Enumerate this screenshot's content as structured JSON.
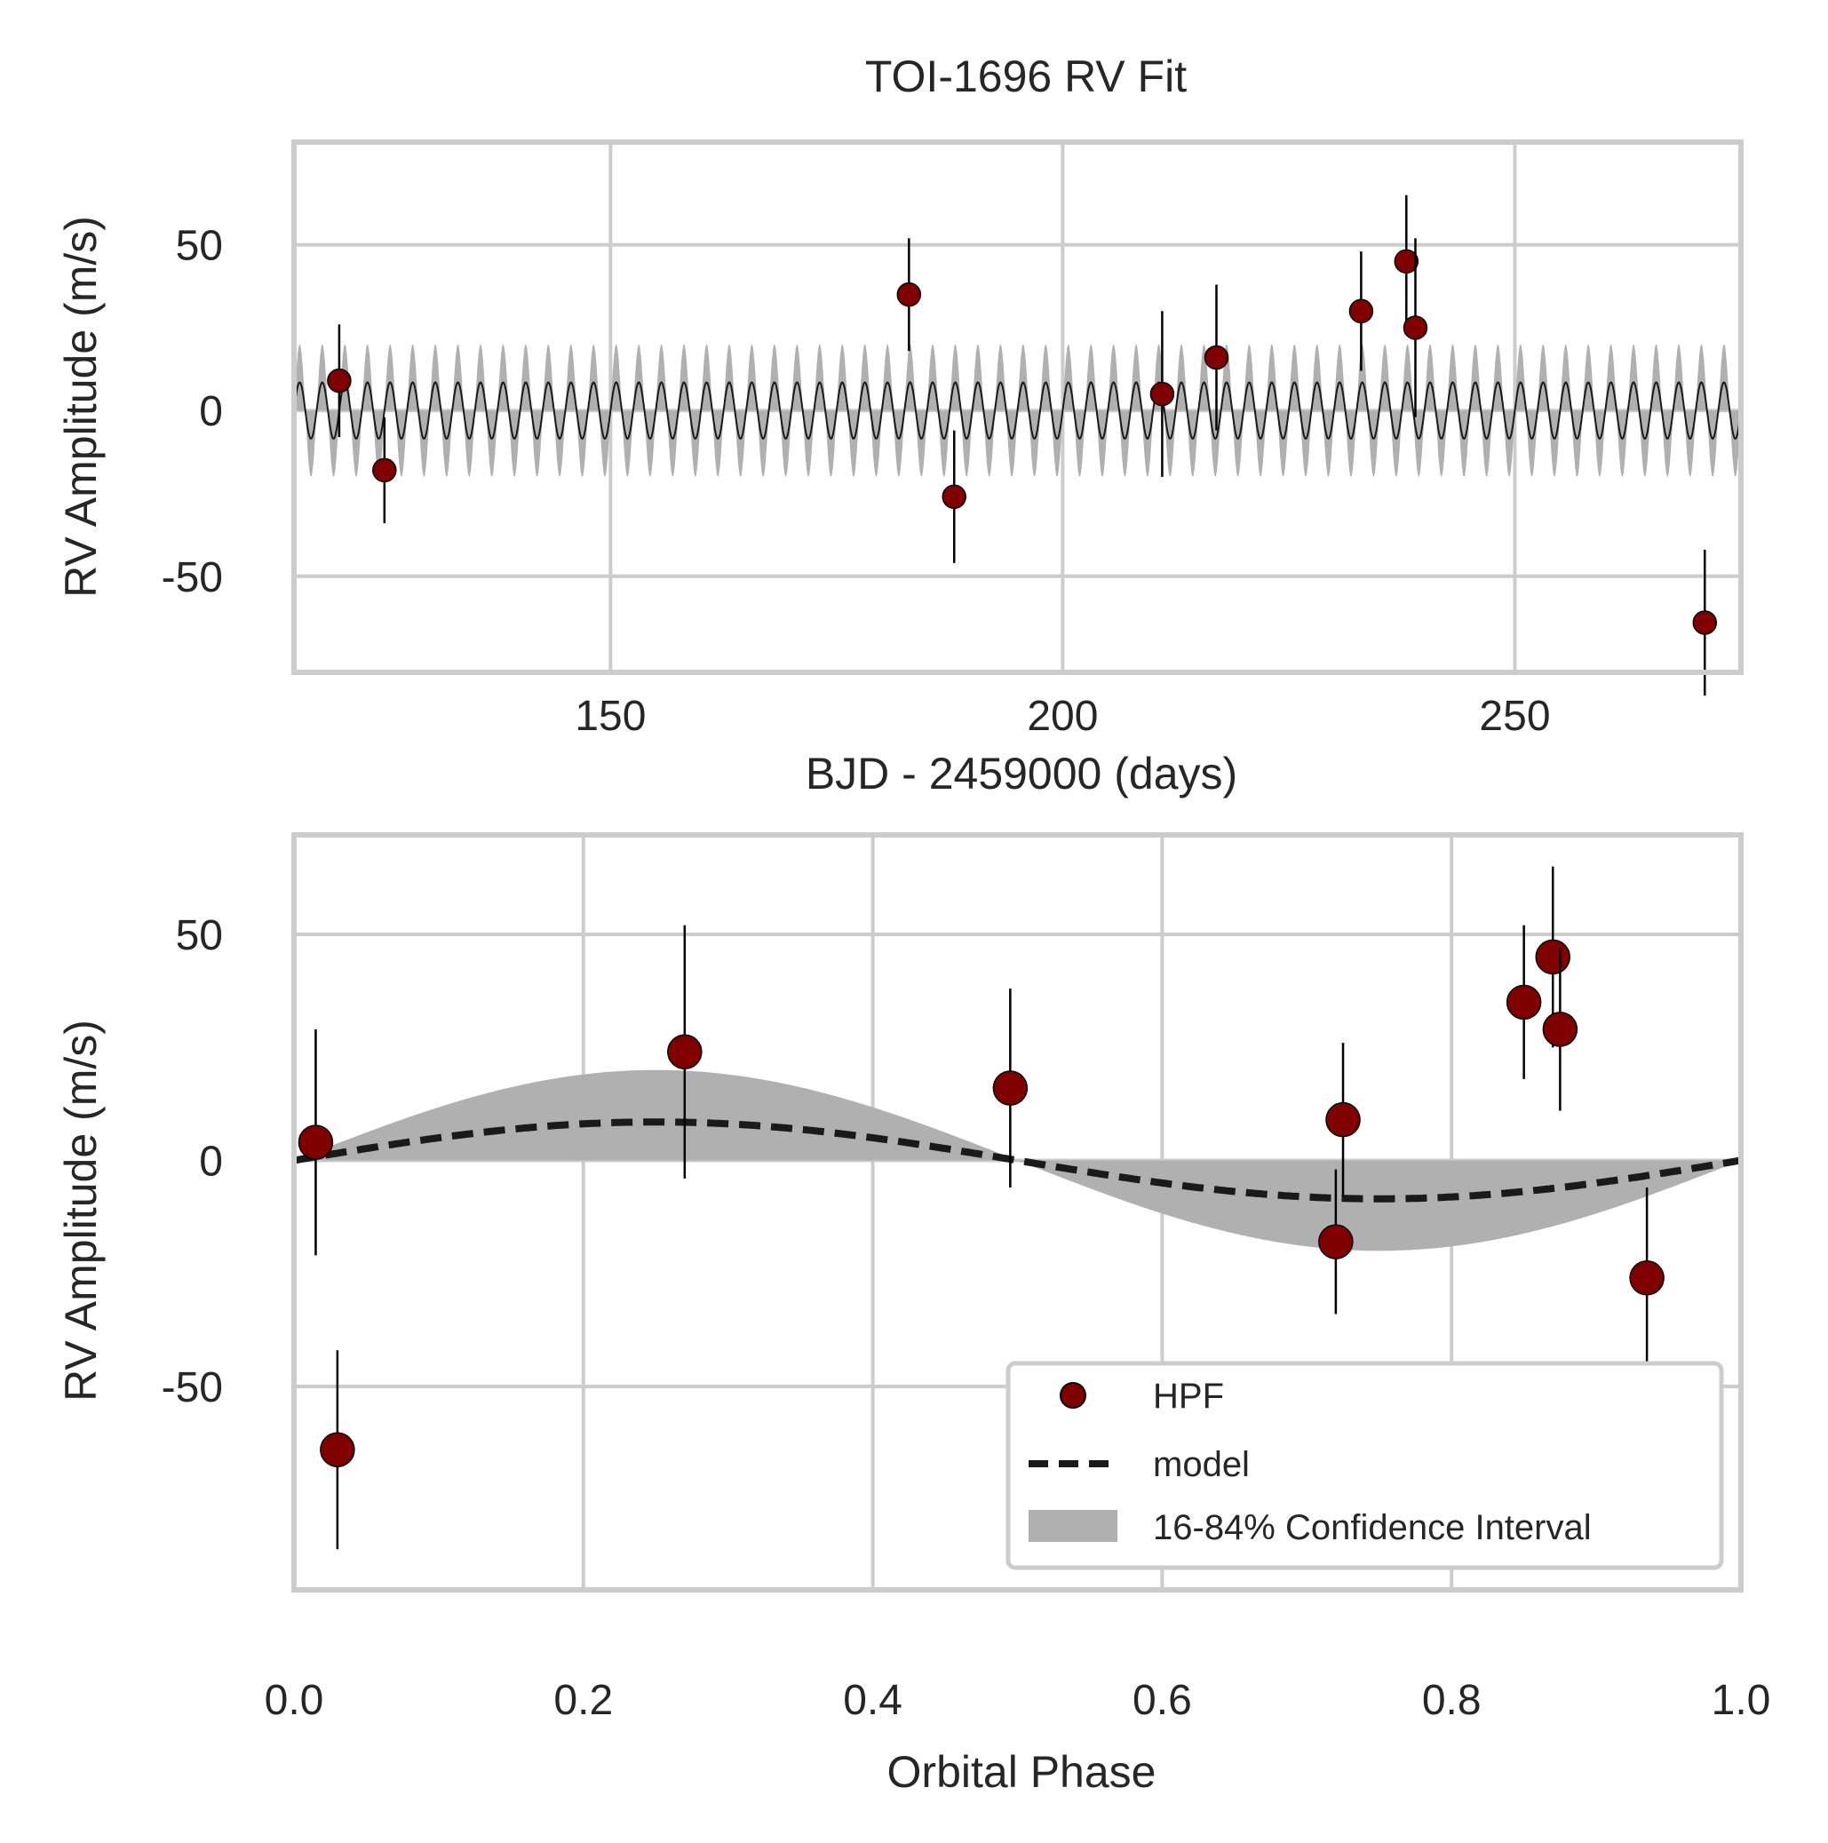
{
  "colors": {
    "point": "#800000",
    "errorbar": "#000000",
    "model": "#1a1a1a",
    "band": "#b0b0b0",
    "grid": "#cccccc",
    "text": "#262626"
  },
  "chart_data": [
    {
      "type": "scatter",
      "title": "TOI-1696 RV Fit",
      "xlabel": "BJD - 2459000 (days)",
      "ylabel": "RV Amplitude (m/s)",
      "xlim": [
        115,
        275
      ],
      "ylim": [
        -79,
        81
      ],
      "xticks": [
        150,
        200,
        250
      ],
      "yticks": [
        -50,
        0,
        50
      ],
      "grid": true,
      "model_semi_amplitude": 8.5,
      "band_semi_amplitude": 20,
      "model_cycles": 64,
      "series": [
        {
          "name": "HPF",
          "x": [
            120,
            125,
            183,
            188,
            211,
            217,
            233,
            238,
            239,
            271
          ],
          "y": [
            9,
            -18,
            35,
            -26,
            5,
            16,
            30,
            45,
            25,
            -64
          ],
          "yerr": [
            17,
            16,
            17,
            20,
            25,
            22,
            18,
            20,
            27,
            22
          ]
        }
      ]
    },
    {
      "type": "scatter",
      "title": "",
      "xlabel": "Orbital Phase",
      "ylabel": "RV Amplitude (m/s)",
      "xlim": [
        0.0,
        1.0
      ],
      "ylim": [
        -95,
        72
      ],
      "xticks": [
        0.0,
        0.2,
        0.4,
        0.6,
        0.8,
        1.0
      ],
      "xticklabels": [
        "0.0",
        "0.2",
        "0.4",
        "0.6",
        "0.8",
        "1.0"
      ],
      "yticks": [
        -50,
        0,
        50
      ],
      "grid": true,
      "legend_position": "lower right",
      "model_semi_amplitude": 8.5,
      "band_semi_amplitude": 20,
      "series": [
        {
          "name": "HPF",
          "x": [
            0.015,
            0.03,
            0.27,
            0.495,
            0.72,
            0.725,
            0.85,
            0.87,
            0.875,
            0.935
          ],
          "y": [
            4,
            -64,
            24,
            16,
            -18,
            9,
            35,
            45,
            29,
            -26
          ],
          "yerr": [
            25,
            22,
            28,
            22,
            16,
            17,
            17,
            20,
            18,
            20
          ]
        },
        {
          "name": "model"
        },
        {
          "name": "16-84% Confidence Interval"
        }
      ]
    }
  ]
}
